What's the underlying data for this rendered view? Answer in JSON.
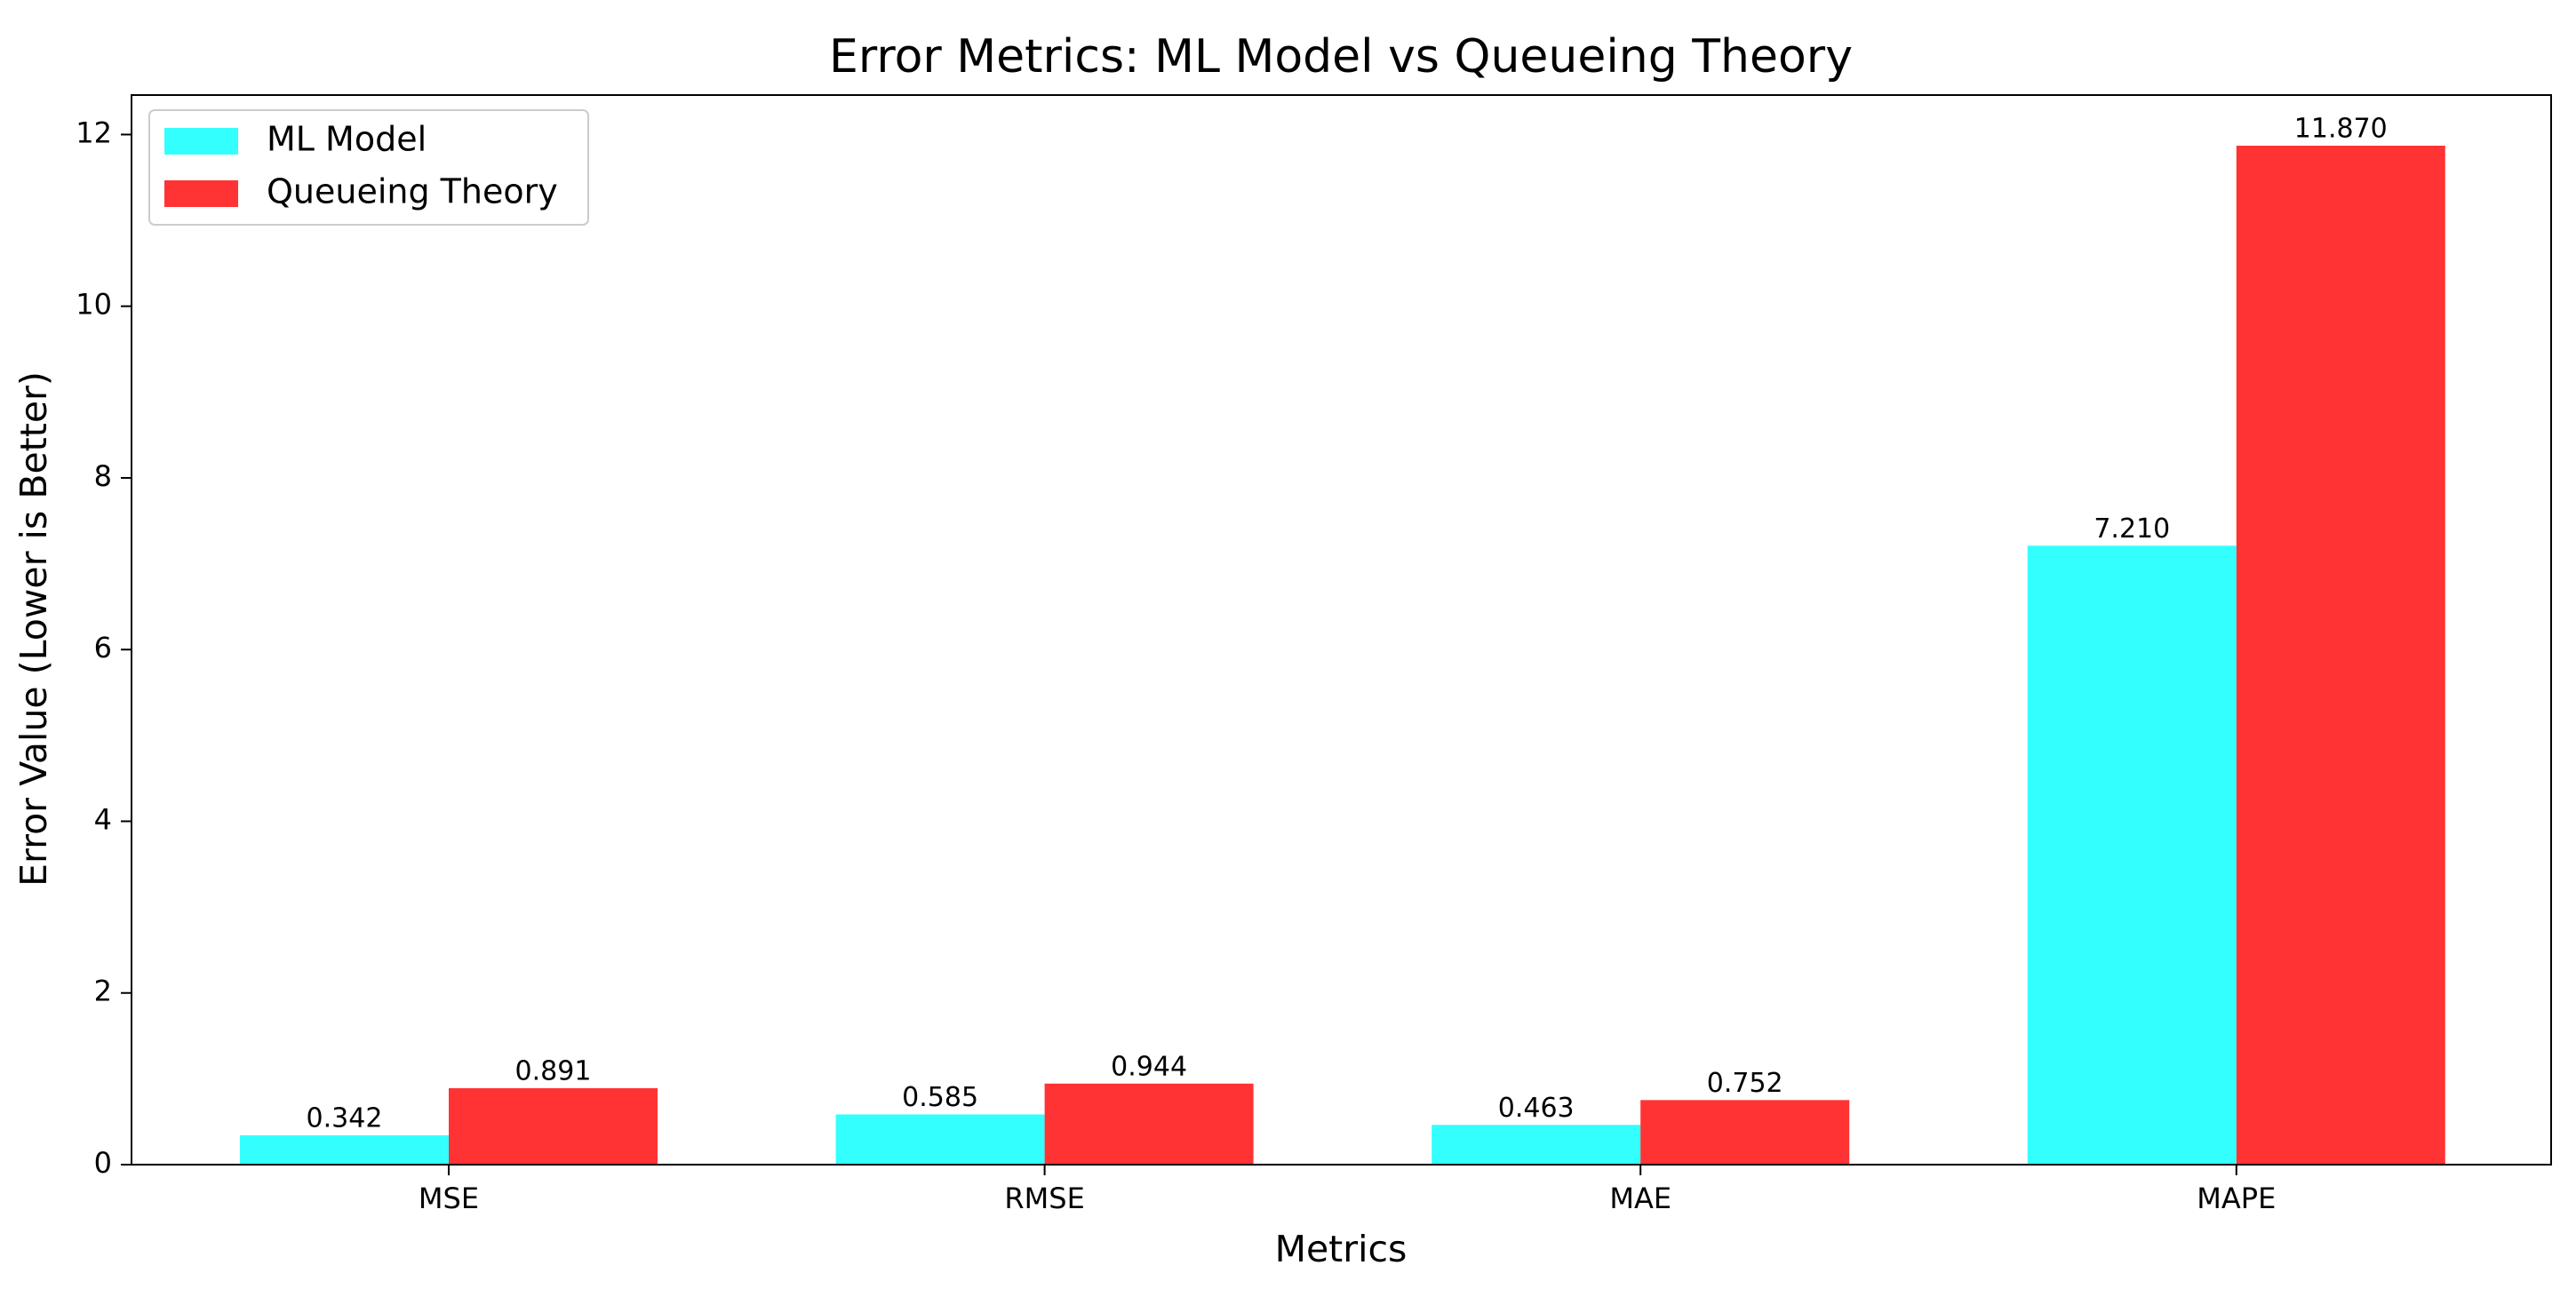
{
  "chart_data": {
    "type": "bar",
    "title": "Error Metrics: ML Model vs Queueing Theory",
    "x_label": "Metrics",
    "y_label": "Error Value (Lower is Better)",
    "categories": [
      "MSE",
      "RMSE",
      "MAE",
      "MAPE"
    ],
    "series": [
      {
        "name": "ML Model",
        "color": "#33ffff",
        "values": [
          0.342,
          0.585,
          0.463,
          7.21
        ],
        "value_labels": [
          "0.342",
          "0.585",
          "0.463",
          "7.210"
        ]
      },
      {
        "name": "Queueing Theory",
        "color": "#ff3333",
        "values": [
          0.891,
          0.944,
          0.752,
          11.87
        ],
        "value_labels": [
          "0.891",
          "0.944",
          "0.752",
          "11.870"
        ]
      }
    ],
    "ylim": [
      0,
      12.46
    ],
    "yticks": [
      0,
      2,
      4,
      6,
      8,
      10,
      12
    ],
    "grid": false,
    "legend": "upper left"
  }
}
